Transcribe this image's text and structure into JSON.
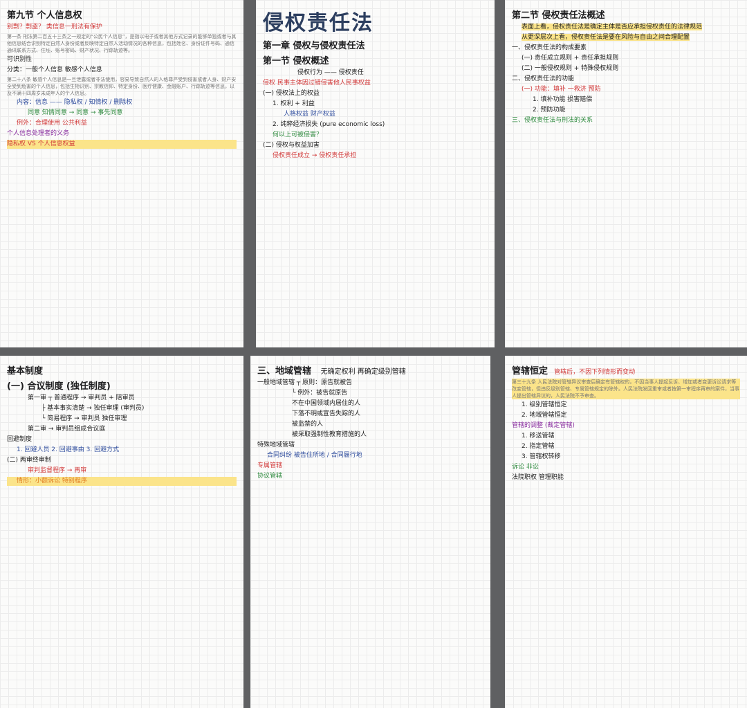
{
  "pages": [
    {
      "title": "第九节 个人信息权",
      "note": "别剽？剽盗？  类信息一刑法有保护",
      "printed": [
        "第一条 刑法第二百五十三条之一规定的“公民个人信息”，是指以电子或者其他方式记录的能够单独或者与其他信息结合识别特定自然人身份或者反映特定自然人活动情况的各种信息，包括姓名、身份证件号码、通信通讯联系方式、住址、账号密码、财产状况、行踪轨迹等。",
        "第二十八条 敏感个人信息是一旦泄露或者非法使用，容易导致自然人的人格尊严受到侵害或者人身、财产安全受到危害的个人信息，包括生物识别、宗教信仰、特定身份、医疗健康、金融账户、行踪轨迹等信息，以及不满十四周岁未成年人的个人信息。"
      ],
      "lines": [
        {
          "t": "可识别性",
          "c": "black"
        },
        {
          "t": "分类：一般个人信息  敏感个人信息",
          "c": "black"
        },
        {
          "t": "内容：信息 —— 隐私权 / 知情权 / 删除权",
          "c": "blue"
        },
        {
          "t": "同意  知情同意 → 同意 → 事先同意",
          "c": "green"
        },
        {
          "t": "例外：合理使用  公共利益",
          "c": "red"
        },
        {
          "t": "个人信息处理者的义务",
          "c": "purple"
        },
        {
          "t": "隐私权 VS 个人信息权益",
          "c": "red"
        }
      ]
    },
    {
      "title": "侵权责任法",
      "sub1": "第一章 侵权与侵权责任法",
      "sub2": "第一节 侵权概述",
      "lines": [
        {
          "t": "侵权行为 —— 侵权责任",
          "c": "black"
        },
        {
          "t": "侵权  民事主体因过错侵害他人民事权益",
          "c": "red"
        },
        {
          "t": "(一) 侵权法上的权益",
          "c": "black"
        },
        {
          "t": "1. 权利 + 利益",
          "c": "black"
        },
        {
          "t": "人格权益  财产权益",
          "c": "blue"
        },
        {
          "t": "2. 纯粹经济损失 (pure economic loss)",
          "c": "black"
        },
        {
          "t": "何以上可被侵害？",
          "c": "green"
        },
        {
          "t": "(二) 侵权与权益加害",
          "c": "black"
        },
        {
          "t": "侵权责任成立 → 侵权责任承担",
          "c": "red"
        }
      ]
    },
    {
      "title": "第二节 侵权责任法概述",
      "lines": [
        {
          "t": "表面上看，侵权责任法是确定主体是否应承担侵权责任的法律规范",
          "c": "black"
        },
        {
          "t": "从更深层次上看，侵权责任法是要在风险与自由之间合理配置",
          "c": "black"
        },
        {
          "t": "一、侵权责任法的构成要素",
          "c": "black"
        },
        {
          "t": "(一) 责任成立规则 + 责任承担规则",
          "c": "black"
        },
        {
          "t": "(二) 一般侵权规则 + 特殊侵权规则",
          "c": "black"
        },
        {
          "t": "二、侵权责任法的功能",
          "c": "black"
        },
        {
          "t": "(一) 功能：填补  一救济 预防",
          "c": "red"
        },
        {
          "t": "1. 填补功能  损害赔偿",
          "c": "black"
        },
        {
          "t": "2. 预防功能",
          "c": "black"
        },
        {
          "t": "三、侵权责任法与刑法的关系",
          "c": "green"
        }
      ]
    },
    {
      "title": "基本制度",
      "sub1": "(一) 合议制度 (独任制度)",
      "lines": [
        {
          "t": "第一审 ┬ 普通程序 → 审判员 + 陪审员",
          "c": "black"
        },
        {
          "t": "├ 基本事实清楚 → 独任审理 (审判员)",
          "c": "black"
        },
        {
          "t": "└ 简易程序 → 审判员 独任审理",
          "c": "black"
        },
        {
          "t": "第二审 → 审判员组成合议庭",
          "c": "black"
        },
        {
          "t": "回避制度",
          "c": "black"
        },
        {
          "t": "1. 回避人员  2. 回避事由  3. 回避方式",
          "c": "blue"
        },
        {
          "t": "(二) 两审终审制",
          "c": "black"
        },
        {
          "t": "审判监督程序 → 再审",
          "c": "red"
        },
        {
          "t": "情形：小额诉讼  特别程序",
          "c": "orange"
        }
      ]
    },
    {
      "title": "三、地域管辖",
      "note": "无确定权利 再确定级别管辖",
      "lines": [
        {
          "t": "一般地域管辖 ┬ 原则：原告就被告",
          "c": "black"
        },
        {
          "t": "└ 例外：被告就原告",
          "c": "black"
        },
        {
          "t": "不在中国领域内居住的人",
          "c": "black"
        },
        {
          "t": "下落不明或宣告失踪的人",
          "c": "black"
        },
        {
          "t": "被监禁的人",
          "c": "black"
        },
        {
          "t": "被采取强制性教育措施的人",
          "c": "black"
        },
        {
          "t": "特殊地域管辖",
          "c": "black"
        },
        {
          "t": "合同纠纷  被告住所地 / 合同履行地",
          "c": "blue"
        },
        {
          "t": "专属管辖",
          "c": "red"
        },
        {
          "t": "协议管辖",
          "c": "green"
        }
      ]
    },
    {
      "title": "管辖恒定",
      "note": "管辖后，不因下列情形而变动",
      "printed": [
        "第三十九条 人民法院对管辖异议审查后确定有管辖权的，不因当事人提起反诉、增加或者变更诉讼请求等改变管辖，但违反级别管辖、专属管辖规定的除外。人民法院发回重审或者按第一审程序再审的案件，当事人提出管辖异议的，人民法院不予审查。"
      ],
      "lines": [
        {
          "t": "1. 级别管辖恒定",
          "c": "black"
        },
        {
          "t": "2. 地域管辖恒定",
          "c": "black"
        },
        {
          "t": "管辖的调整 (裁定管辖)",
          "c": "purple"
        },
        {
          "t": "1. 移送管辖",
          "c": "black"
        },
        {
          "t": "2. 指定管辖",
          "c": "black"
        },
        {
          "t": "3. 管辖权转移",
          "c": "black"
        },
        {
          "t": "诉讼 非讼",
          "c": "green"
        },
        {
          "t": "法院职权  管理职能",
          "c": "black"
        }
      ]
    }
  ]
}
